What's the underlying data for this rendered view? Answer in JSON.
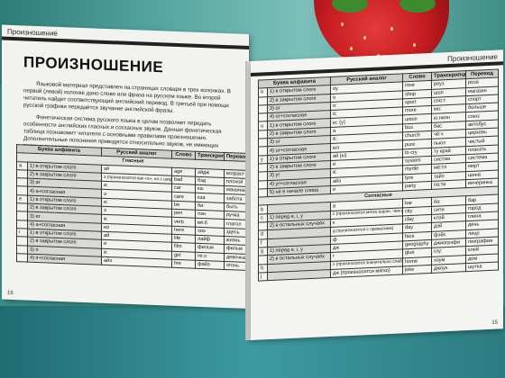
{
  "left_page": {
    "running_head": "Произношение",
    "title": "ПРОИЗНОШЕНИЕ",
    "paragraphs": [
      "Языковой материал представлен на страницах словаря в трех колонках. В первой (левой) колонке дано слово или фраза на русском языке. Во второй читатель найдет соответствующий английский перевод. В третьей при помощи русской графики передаётся звучание английской фразы.",
      "Фонетическая система русского языка в целом позволяет передать особенности английских гласных и согласных звуков. Данная фонетическая таблица познакомит читателя с основными правилами произношения. Дополнительные пояснения приводятся относительно звуков, не имеющих прямых аналогов."
    ],
    "table_headers": [
      "Буква алфавита",
      "Русский аналог",
      "Слово",
      "Транскрипция",
      "Перевод"
    ],
    "section_label": "Гласные",
    "rows": [
      {
        "n": "a",
        "cond": "1) в открытом слоге",
        "ru": "эй",
        "word": "age",
        "tr": "эйдж",
        "trans": "возраст"
      },
      {
        "n": "",
        "cond": "2) в закрытом слоге",
        "ru": "э (произносится как «э», но с широко открытым ртом)",
        "word": "bad",
        "tr": "бэд",
        "trans": "плохой"
      },
      {
        "n": "",
        "cond": "3) ar",
        "ru": "а:",
        "word": "car",
        "tr": "ка:",
        "trans": "машина"
      },
      {
        "n": "",
        "cond": "4) a+согласная",
        "ru": "э",
        "word": "care",
        "tr": "кэа",
        "trans": "забота"
      },
      {
        "n": "e",
        "cond": "1) в открытом слоге",
        "ru": "и:",
        "word": "be",
        "tr": "би:",
        "trans": "быть"
      },
      {
        "n": "",
        "cond": "2) в закрытом слоге",
        "ru": "э",
        "word": "pen",
        "tr": "пэн",
        "trans": "ручка"
      },
      {
        "n": "",
        "cond": "3) er",
        "ru": "ё:",
        "word": "verb",
        "tr": "вё:б",
        "trans": "глагол"
      },
      {
        "n": "",
        "cond": "4) а+согласная",
        "ru": "иэ",
        "word": "here",
        "tr": "хиэ",
        "trans": "здесь"
      },
      {
        "n": "i",
        "cond": "1) в открытом слоге",
        "ru": "ай",
        "word": "life",
        "tr": "лайф",
        "trans": "жизнь"
      },
      {
        "n": "",
        "cond": "2) в закрытом слоге",
        "ru": "и",
        "word": "film",
        "tr": "фильм",
        "trans": "фильм"
      },
      {
        "n": "",
        "cond": "3) ir",
        "ru": "ё:",
        "word": "girl",
        "tr": "гё:л",
        "trans": "девочка"
      },
      {
        "n": "",
        "cond": "4) ir+согласная",
        "ru": "айэ",
        "word": "fire",
        "tr": "файэ",
        "trans": "огонь"
      }
    ],
    "page_number": "16"
  },
  "right_page": {
    "running_head": "Произношение",
    "table_headers": [
      "Буква алфавита",
      "Русский аналог",
      "Слово",
      "Транскрипция",
      "Перевод"
    ],
    "vowel_rows": [
      {
        "n": "o",
        "cond": "1) в открытом слоге",
        "ru": "оу",
        "word": "rose",
        "tr": "роуз",
        "trans": "роза"
      },
      {
        "n": "",
        "cond": "2) в закрытом слоге",
        "ru": "о",
        "word": "shop",
        "tr": "шоп",
        "trans": "магазин"
      },
      {
        "n": "",
        "cond": "3) or",
        "ru": "о:",
        "word": "sport",
        "tr": "спо:т",
        "trans": "спорт"
      },
      {
        "n": "",
        "cond": "4) or+согласная",
        "ru": "о:",
        "word": "more",
        "tr": "мо:",
        "trans": "больше"
      },
      {
        "n": "u",
        "cond": "1) в открытом слоге",
        "ru": "ю: (у)",
        "word": "union",
        "tr": "ю:ниэн",
        "trans": "союз"
      },
      {
        "n": "",
        "cond": "2) в закрытом слоге",
        "ru": "а",
        "word": "bus",
        "tr": "бас",
        "trans": "автобус"
      },
      {
        "n": "",
        "cond": "3) ur",
        "ru": "ё:",
        "word": "church",
        "tr": "чё:ч",
        "trans": "церковь"
      },
      {
        "n": "",
        "cond": "4) ur+согласная",
        "ru": "юэ",
        "word": "pure",
        "tr": "пьюэ",
        "trans": "чистый"
      },
      {
        "n": "y",
        "cond": "1) в открытом слоге",
        "ru": "ай (ы)",
        "word": "to cry",
        "tr": "ту край",
        "trans": "плакать"
      },
      {
        "n": "",
        "cond": "2) в закрытом слоге",
        "ru": "и",
        "word": "system",
        "tr": "систэм",
        "trans": "система"
      },
      {
        "n": "",
        "cond": "3) yr",
        "ru": "ё:",
        "word": "myrtle",
        "tr": "мё:тл",
        "trans": "мирт"
      },
      {
        "n": "",
        "cond": "4) yr+согласная",
        "ru": "айэ",
        "word": "tyre",
        "tr": "тайэ",
        "trans": "шина"
      },
      {
        "n": "",
        "cond": "5) не в начале слова",
        "ru": "и",
        "word": "party",
        "tr": "па:ти",
        "trans": "вечеринка"
      }
    ],
    "consonant_label": "Согласные",
    "consonant_rows": [
      {
        "n": "b",
        "cond": "",
        "ru": "б",
        "word": "bar",
        "tr": "ба:",
        "trans": "бар"
      },
      {
        "n": "c",
        "cond": "1) перед e, i, y",
        "ru": "с (произносится мягко аэрэн, чем русский звук)",
        "word": "city",
        "tr": "сити",
        "trans": "город"
      },
      {
        "n": "",
        "cond": "2) в остальных случаях",
        "ru": "к",
        "word": "clay",
        "tr": "клэй",
        "trans": "глина"
      },
      {
        "n": "d",
        "cond": "",
        "ru": "д (произносится с прижатием)",
        "word": "day",
        "tr": "дэй",
        "trans": "день"
      },
      {
        "n": "f",
        "cond": "",
        "ru": "ф",
        "word": "face",
        "tr": "фэйс",
        "trans": "лицо"
      },
      {
        "n": "g",
        "cond": "1) перед e, i, y",
        "ru": "дж",
        "word": "geography",
        "tr": "джиогрэфи",
        "trans": "география"
      },
      {
        "n": "",
        "cond": "2) в остальных случаях",
        "ru": "г",
        "word": "glue",
        "tr": "глу:",
        "trans": "клей"
      },
      {
        "n": "h",
        "cond": "",
        "ru": "х (произносится значительно слабее, чем русский звук)",
        "word": "home",
        "tr": "хоум",
        "trans": "дом"
      },
      {
        "n": "j",
        "cond": "",
        "ru": "дж (произносится мягко)",
        "word": "joke",
        "tr": "джоук",
        "trans": "шутка"
      }
    ],
    "page_number": "15"
  }
}
